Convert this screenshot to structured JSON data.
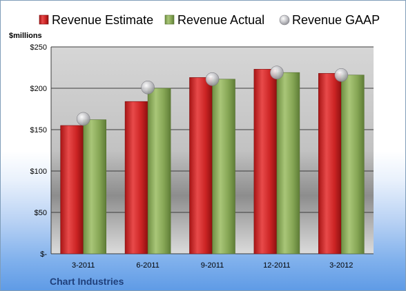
{
  "chart_data": {
    "type": "bar",
    "title": "",
    "xlabel": "",
    "ylabel": "$millions",
    "categories": [
      "3-2011",
      "6-2011",
      "9-2011",
      "12-2011",
      "3-2012"
    ],
    "series": [
      {
        "name": "Revenue Estimate",
        "type": "bar",
        "color": "#d42a2a",
        "values": [
          155,
          184,
          213,
          223,
          218
        ]
      },
      {
        "name": "Revenue Actual",
        "type": "bar",
        "color": "#8aab5a",
        "values": [
          162,
          200,
          211,
          219,
          216
        ]
      },
      {
        "name": "Revenue GAAP",
        "type": "marker",
        "color": "#b9b9bd",
        "values": [
          163,
          201,
          211,
          219,
          216
        ]
      }
    ],
    "ylim": [
      0,
      250
    ],
    "yticks": [
      0,
      50,
      100,
      150,
      200,
      250
    ],
    "ytick_labels": [
      "$-",
      "$50",
      "$100",
      "$150",
      "$200",
      "$250"
    ],
    "grid": true,
    "legend_position": "top"
  },
  "footer": {
    "company": "Chart Industries"
  }
}
